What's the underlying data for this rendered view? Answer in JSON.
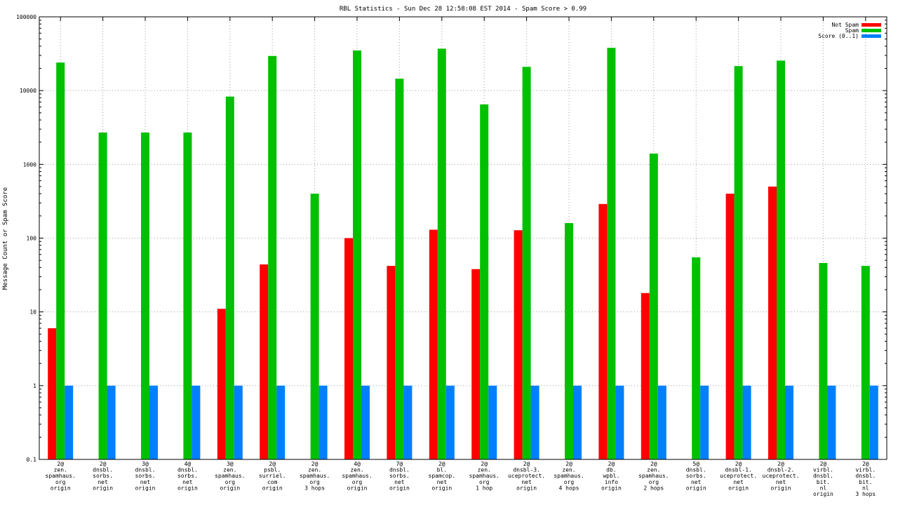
{
  "chart_data": {
    "type": "bar",
    "title": "RBL Statistics - Sun Dec 28 12:58:08 EST 2014 - Spam Score > 0.99",
    "xlabel": "",
    "ylabel": "Message Count or Spam Score",
    "yscale": "log",
    "ylim": [
      0.1,
      100000
    ],
    "yticks": [
      "0.1",
      "1",
      "10",
      "100",
      "1000",
      "10000",
      "100000"
    ],
    "grid": true,
    "legend_position": "top-right",
    "categories": [
      [
        "2@",
        "zen.",
        "spamhaus.",
        "org",
        "origin"
      ],
      [
        "2@",
        "dnsbl.",
        "sorbs.",
        "net",
        "origin"
      ],
      [
        "3@",
        "dnsbl.",
        "sorbs.",
        "net",
        "origin"
      ],
      [
        "4@",
        "dnsbl.",
        "sorbs.",
        "net",
        "origin"
      ],
      [
        "3@",
        "zen.",
        "spamhaus.",
        "org",
        "origin"
      ],
      [
        "2@",
        "psbl.",
        "surriel.",
        "com",
        "origin"
      ],
      [
        "2@",
        "zen.",
        "spamhaus.",
        "org",
        "3 hops"
      ],
      [
        "4@",
        "zen.",
        "spamhaus.",
        "org",
        "origin"
      ],
      [
        "7@",
        "dnsbl.",
        "sorbs.",
        "net",
        "origin"
      ],
      [
        "2@",
        "bl.",
        "spamcop.",
        "net",
        "origin"
      ],
      [
        "2@",
        "zen.",
        "spamhaus.",
        "org",
        "1 hop"
      ],
      [
        "2@",
        "dnsbl-3.",
        "uceprotect.",
        "net",
        "origin"
      ],
      [
        "2@",
        "zen.",
        "spamhaus.",
        "org",
        "4 hops"
      ],
      [
        "2@",
        "db.",
        "wpbl.",
        "info",
        "origin"
      ],
      [
        "2@",
        "zen.",
        "spamhaus.",
        "org",
        "2 hops"
      ],
      [
        "5@",
        "dnsbl.",
        "sorbs.",
        "net",
        "origin"
      ],
      [
        "2@",
        "dnsbl-1.",
        "uceprotect.",
        "net",
        "origin"
      ],
      [
        "2@",
        "dnsbl-2.",
        "uceprotect.",
        "net",
        "origin"
      ],
      [
        "2@",
        "virbl.",
        "dnsbl.",
        "bit.",
        "nl",
        "origin"
      ],
      [
        "2@",
        "virbl.",
        "dnsbl.",
        "bit.",
        "nl",
        "3 hops"
      ]
    ],
    "series": [
      {
        "name": "Not Spam",
        "color": "#ff0000",
        "values": [
          6,
          null,
          null,
          null,
          11,
          44,
          null,
          100,
          42,
          130,
          38,
          128,
          null,
          290,
          18,
          null,
          400,
          500,
          null,
          null
        ]
      },
      {
        "name": "Spam",
        "color": "#00c000",
        "values": [
          24000,
          2700,
          2700,
          2700,
          8300,
          29500,
          400,
          35000,
          14500,
          37000,
          6500,
          21000,
          160,
          38000,
          1400,
          55,
          21500,
          25500,
          46,
          42
        ]
      },
      {
        "name": "Score (0..1)",
        "color": "#0080ff",
        "values": [
          1,
          1,
          1,
          1,
          1,
          1,
          1,
          1,
          1,
          1,
          1,
          1,
          1,
          1,
          1,
          1,
          1,
          1,
          1,
          1
        ]
      }
    ]
  }
}
